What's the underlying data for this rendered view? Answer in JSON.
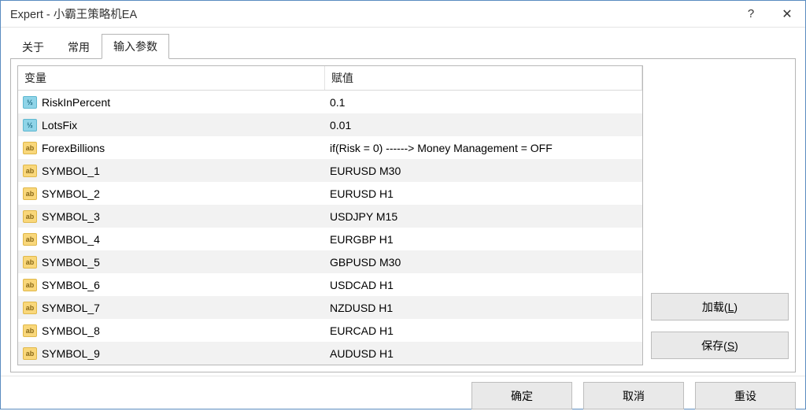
{
  "window": {
    "title": "Expert - 小霸王策略机EA",
    "help_symbol": "?",
    "close_symbol": "✕"
  },
  "tabs": [
    {
      "label": "关于",
      "active": false
    },
    {
      "label": "常用",
      "active": false
    },
    {
      "label": "输入参数",
      "active": true
    }
  ],
  "table": {
    "header_variable": "变量",
    "header_value": "赋值",
    "rows": [
      {
        "icon": "num",
        "variable": "RiskInPercent",
        "value": "0.1"
      },
      {
        "icon": "num",
        "variable": "LotsFix",
        "value": "0.01"
      },
      {
        "icon": "str",
        "variable": "ForexBillions",
        "value": "if(Risk = 0)  ------>   Money Management = OFF"
      },
      {
        "icon": "str",
        "variable": "SYMBOL_1",
        "value": "EURUSD M30"
      },
      {
        "icon": "str",
        "variable": "SYMBOL_2",
        "value": "EURUSD H1"
      },
      {
        "icon": "str",
        "variable": "SYMBOL_3",
        "value": "USDJPY M15"
      },
      {
        "icon": "str",
        "variable": "SYMBOL_4",
        "value": "EURGBP H1"
      },
      {
        "icon": "str",
        "variable": "SYMBOL_5",
        "value": "GBPUSD M30"
      },
      {
        "icon": "str",
        "variable": "SYMBOL_6",
        "value": "USDCAD H1"
      },
      {
        "icon": "str",
        "variable": "SYMBOL_7",
        "value": "NZDUSD H1"
      },
      {
        "icon": "str",
        "variable": "SYMBOL_8",
        "value": "EURCAD H1"
      },
      {
        "icon": "str",
        "variable": "SYMBOL_9",
        "value": "AUDUSD H1"
      }
    ]
  },
  "icons": {
    "num_glyph": "½",
    "str_glyph": "ab"
  },
  "side_buttons": {
    "load": {
      "text": "加载(",
      "mn": "L",
      "suffix": ")"
    },
    "save": {
      "text": "保存(",
      "mn": "S",
      "suffix": ")"
    }
  },
  "bottom_buttons": {
    "ok": "确定",
    "cancel": "取消",
    "reset": "重设"
  },
  "colors": {
    "window_border": "#5a8cc0",
    "panel_border": "#b5b5b5",
    "row_alt_bg": "#f2f2f2",
    "btn_bg": "#e9e9e9",
    "btn_border": "#bdbdbd",
    "icon_num_bg": "#8fd4e8",
    "icon_str_bg": "#f9d77a"
  }
}
